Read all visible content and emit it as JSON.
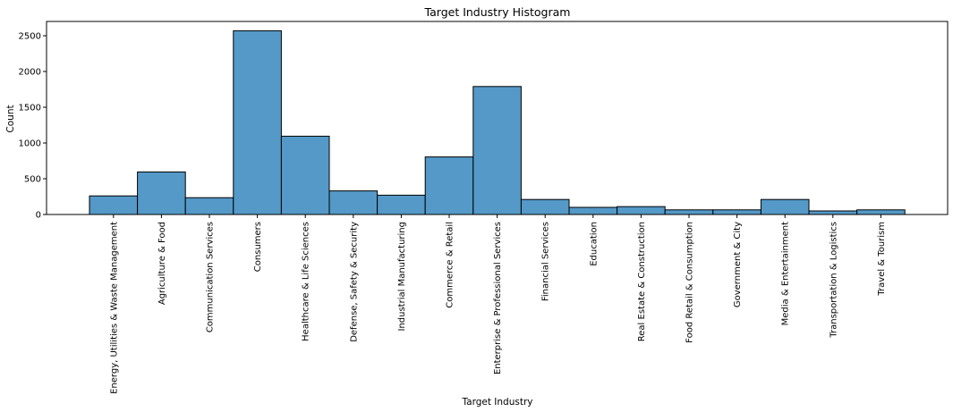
{
  "chart_data": {
    "type": "bar",
    "title": "Target Industry Histogram",
    "xlabel": "Target Industry",
    "ylabel": "Count",
    "ylim": [
      0,
      2700
    ],
    "yticks": [
      0,
      500,
      1000,
      1500,
      2000,
      2500
    ],
    "ytick_labels": [
      "0",
      "500",
      "1000",
      "1500",
      "2000",
      "2500"
    ],
    "bar_color": "#5499c7",
    "categories": [
      "Energy, Utilities & Waste Management",
      "Agriculture & Food",
      "Communication Services",
      "Consumers",
      "Healthcare & Life Sciences",
      "Defense, Safety & Security",
      "Industrial Manufacturing",
      "Commerce & Retail",
      "Enterprise & Professional Services",
      "Financial Services",
      "Education",
      "Real Estate & Construction",
      "Food Retail & Consumption",
      "Government & City",
      "Media & Entertainment",
      "Transportation & Logistics",
      "Travel & Tourism"
    ],
    "values": [
      260,
      595,
      235,
      2570,
      1095,
      330,
      270,
      805,
      1790,
      210,
      100,
      110,
      65,
      65,
      210,
      50,
      65
    ]
  }
}
